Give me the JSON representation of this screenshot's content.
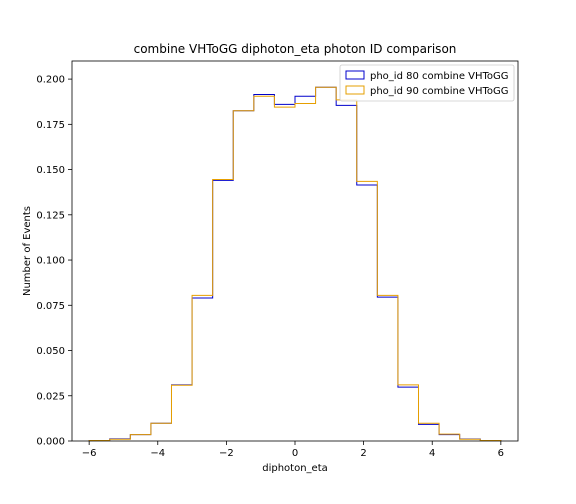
{
  "chart_data": {
    "type": "histogram-step",
    "title": "combine VHToGG diphoton_eta photon ID comparison",
    "xlabel": "diphoton_eta",
    "ylabel": "Number of Events",
    "xlim": [
      -6.5,
      6.5
    ],
    "ylim": [
      0.0,
      0.21
    ],
    "xticks": [
      -6,
      -4,
      -2,
      0,
      2,
      4,
      6
    ],
    "xtick_labels": [
      "−6",
      "−4",
      "−2",
      "0",
      "2",
      "4",
      "6"
    ],
    "yticks": [
      0.0,
      0.025,
      0.05,
      0.075,
      0.1,
      0.125,
      0.15,
      0.175,
      0.2
    ],
    "ytick_labels": [
      "0.000",
      "0.025",
      "0.050",
      "0.075",
      "0.100",
      "0.125",
      "0.150",
      "0.175",
      "0.200"
    ],
    "grid": false,
    "legend_position": "top-right",
    "bin_edges": [
      -6.0,
      -5.4,
      -4.8,
      -4.2,
      -3.6,
      -3.0,
      -2.4,
      -1.8,
      -1.2,
      -0.6,
      0.0,
      0.6,
      1.2,
      1.8,
      2.4,
      3.0,
      3.6,
      4.2,
      4.8,
      5.4,
      6.0
    ],
    "series": [
      {
        "name": "pho_id 80 combine VHToGG",
        "color": "#0000cc",
        "values": [
          0.0003,
          0.0012,
          0.0035,
          0.0098,
          0.031,
          0.079,
          0.144,
          0.1825,
          0.1915,
          0.186,
          0.1905,
          0.1955,
          0.1855,
          0.1415,
          0.0795,
          0.0298,
          0.0092,
          0.0035,
          0.0011,
          0.0003
        ]
      },
      {
        "name": "pho_id 90 combine VHToGG",
        "color": "#e69f00",
        "values": [
          0.0003,
          0.001,
          0.0035,
          0.0098,
          0.0308,
          0.0805,
          0.1445,
          0.1825,
          0.1905,
          0.1845,
          0.1865,
          0.1955,
          0.1885,
          0.1435,
          0.0805,
          0.031,
          0.0098,
          0.0038,
          0.001,
          0.0003
        ]
      }
    ]
  }
}
